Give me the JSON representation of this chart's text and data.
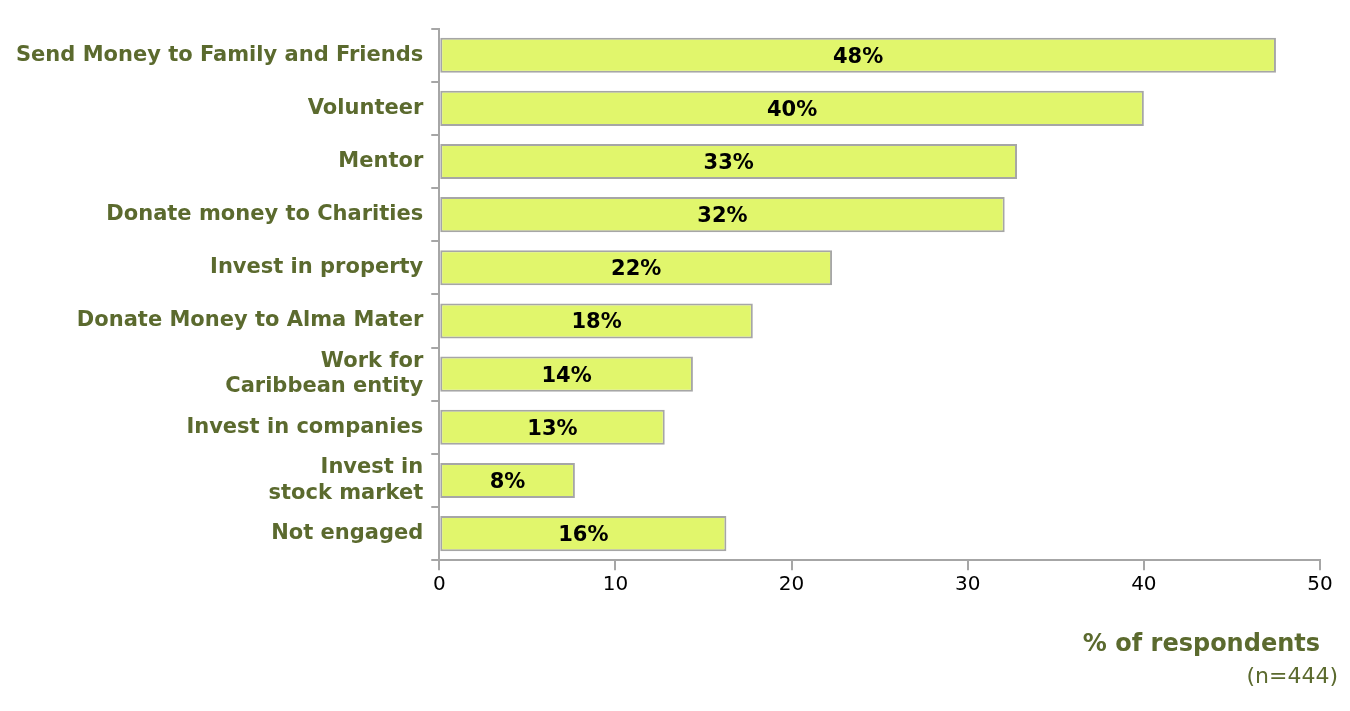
{
  "chart_data": {
    "type": "bar",
    "orientation": "horizontal",
    "categories": [
      "Send Money to Family and Friends",
      "Volunteer",
      "Mentor",
      "Donate money to Charities",
      "Invest in property",
      "Donate Money to Alma Mater",
      "Work for\nCaribbean entity",
      "Invest in companies",
      "Invest in\nstock market",
      "Not engaged"
    ],
    "values": [
      47.5,
      40,
      32.8,
      32.1,
      22.3,
      17.8,
      14.4,
      12.8,
      7.7,
      16.3
    ],
    "value_labels": [
      "48%",
      "40%",
      "33%",
      "32%",
      "22%",
      "18%",
      "14%",
      "13%",
      "8%",
      "16%"
    ],
    "color": "#e1f66c",
    "xlim": [
      0,
      50
    ],
    "xticks": [
      0,
      10,
      20,
      30,
      40,
      50
    ],
    "xlabel": "% of respondents",
    "annotations": [
      "(n=444)"
    ],
    "grid": false,
    "legend": false
  }
}
